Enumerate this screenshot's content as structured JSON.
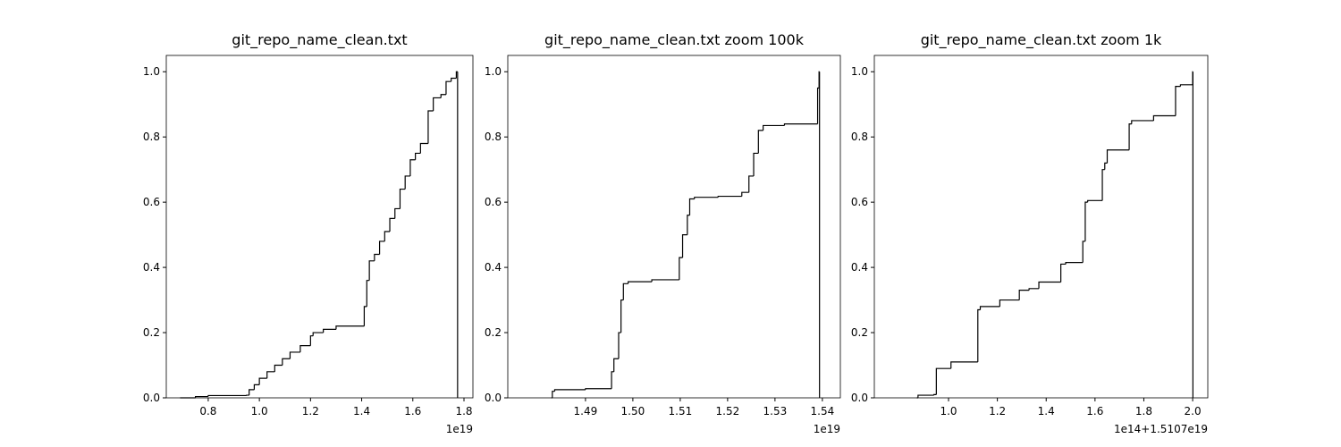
{
  "chart_data": [
    {
      "type": "step",
      "title": "git_repo_name_clean.txt",
      "x_offset_text": "1e19",
      "x": [
        0.69,
        0.75,
        0.8,
        0.95,
        0.96,
        0.98,
        1.0,
        1.03,
        1.06,
        1.09,
        1.12,
        1.16,
        1.2,
        1.21,
        1.25,
        1.3,
        1.41,
        1.42,
        1.43,
        1.45,
        1.47,
        1.49,
        1.51,
        1.53,
        1.55,
        1.57,
        1.59,
        1.61,
        1.63,
        1.66,
        1.68,
        1.71,
        1.73,
        1.75,
        1.77,
        1.775
      ],
      "y": [
        0,
        0.004,
        0.007,
        0.008,
        0.025,
        0.04,
        0.06,
        0.08,
        0.1,
        0.12,
        0.14,
        0.16,
        0.19,
        0.2,
        0.21,
        0.22,
        0.28,
        0.36,
        0.42,
        0.44,
        0.48,
        0.51,
        0.55,
        0.58,
        0.64,
        0.68,
        0.73,
        0.75,
        0.78,
        0.88,
        0.92,
        0.93,
        0.97,
        0.98,
        1.0,
        0
      ],
      "color": "#000000",
      "xlim": [
        0.636,
        1.835
      ],
      "xticks": [
        0.8,
        {
          "value": 1.0,
          "label": "1.0"
        },
        1.2,
        1.4,
        1.6,
        1.8
      ],
      "ylim": [
        0,
        1.05
      ],
      "yticks": [
        {
          "value": 0,
          "label": "0.0"
        },
        0.2,
        0.4,
        0.6,
        0.8,
        {
          "value": 1.0,
          "label": "1.0"
        }
      ]
    },
    {
      "type": "step",
      "title": "git_repo_name_clean.txt zoom 100k",
      "x_offset_text": "1e19",
      "x": [
        1.4828,
        1.483,
        1.4835,
        1.49,
        1.4955,
        1.496,
        1.497,
        1.4975,
        1.498,
        1.499,
        1.504,
        1.5098,
        1.5105,
        1.5115,
        1.512,
        1.513,
        1.518,
        1.523,
        1.5245,
        1.5255,
        1.5265,
        1.5275,
        1.532,
        1.539,
        1.5393,
        1.5394
      ],
      "y": [
        0,
        0.02,
        0.025,
        0.028,
        0.08,
        0.12,
        0.2,
        0.3,
        0.35,
        0.356,
        0.362,
        0.43,
        0.5,
        0.56,
        0.61,
        0.615,
        0.618,
        0.63,
        0.68,
        0.75,
        0.82,
        0.835,
        0.84,
        0.95,
        1.0,
        0
      ],
      "color": "#000000",
      "xlim": [
        1.4736,
        1.5438
      ],
      "xticks": [
        1.49,
        {
          "value": 1.5,
          "label": "1.50"
        },
        1.51,
        1.52,
        1.53,
        1.54
      ],
      "ylim": [
        0,
        1.05
      ],
      "yticks": [
        {
          "value": 0,
          "label": "0.0"
        },
        0.2,
        0.4,
        0.6,
        0.8,
        {
          "value": 1.0,
          "label": "1.0"
        }
      ]
    },
    {
      "type": "step",
      "title": "git_repo_name_clean.txt zoom 1k",
      "x_offset_text": "1e14+1.5107e19",
      "x": [
        0.87,
        0.875,
        0.94,
        0.95,
        1.01,
        1.12,
        1.13,
        1.21,
        1.29,
        1.33,
        1.37,
        1.46,
        1.48,
        1.55,
        1.56,
        1.57,
        1.63,
        1.64,
        1.65,
        1.74,
        1.75,
        1.84,
        1.93,
        1.95,
        2.0,
        2.001
      ],
      "y": [
        0,
        0.008,
        0.01,
        0.09,
        0.11,
        0.27,
        0.28,
        0.3,
        0.33,
        0.335,
        0.355,
        0.41,
        0.415,
        0.48,
        0.6,
        0.605,
        0.7,
        0.72,
        0.76,
        0.84,
        0.85,
        0.865,
        0.955,
        0.96,
        1.0,
        0
      ],
      "color": "#000000",
      "xlim": [
        0.696,
        2.062
      ],
      "xticks": [
        {
          "value": 1.0,
          "label": "1.0"
        },
        1.2,
        1.4,
        1.6,
        1.8,
        {
          "value": 2.0,
          "label": "2.0"
        }
      ],
      "ylim": [
        0,
        1.05
      ],
      "yticks": [
        {
          "value": 0,
          "label": "0.0"
        },
        0.2,
        0.4,
        0.6,
        0.8,
        {
          "value": 1.0,
          "label": "1.0"
        }
      ]
    }
  ]
}
